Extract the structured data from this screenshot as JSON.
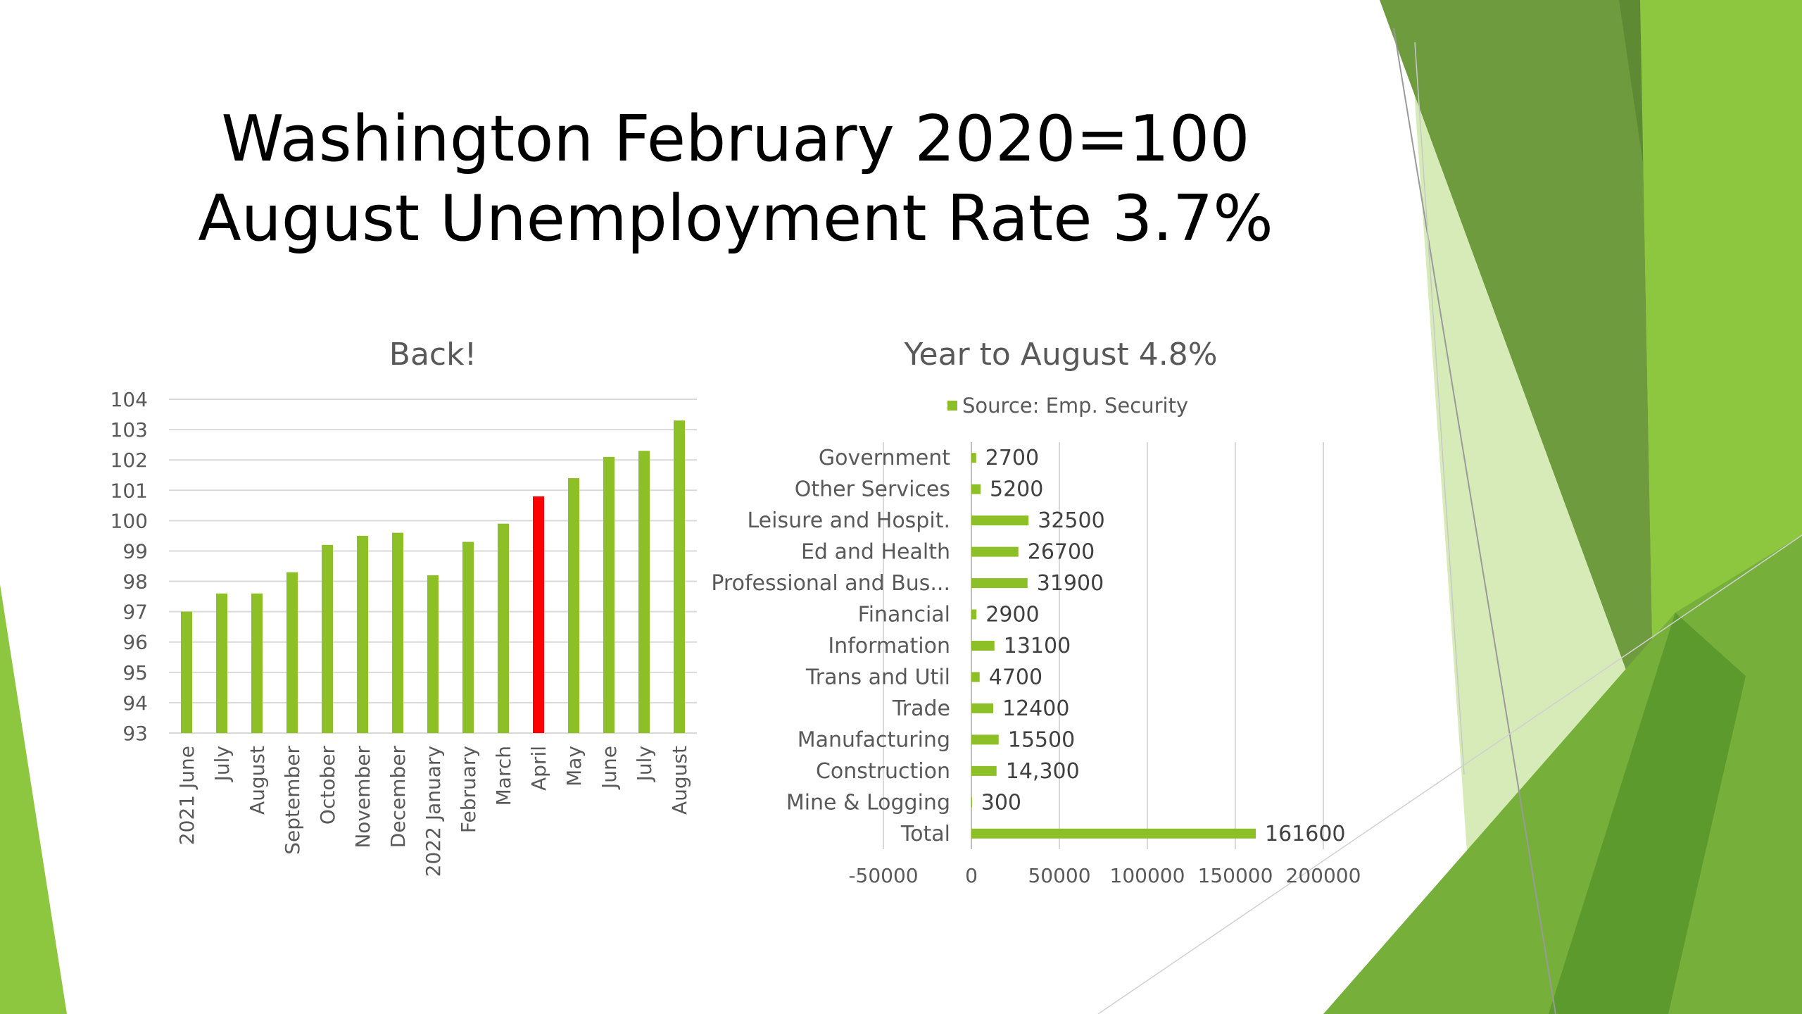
{
  "slide": {
    "title_line1": "Washington February 2020=100",
    "title_line2": "August Unemployment Rate 3.7%"
  },
  "colors": {
    "bar_green": "#8DC026",
    "highlight_red": "#FF0000",
    "deco_dark_green": "#6E9B3D",
    "deco_green": "#8DC63F",
    "deco_light_green": "#C9E3A1",
    "grid": "#D9D9D9",
    "text_gray": "#595959"
  },
  "chart_data": [
    {
      "type": "bar",
      "title": "Back!",
      "categories": [
        "2021 June",
        "July",
        "August",
        "September",
        "October",
        "November",
        "December",
        "2022 January",
        "February",
        "March",
        "April",
        "May",
        "June",
        "July",
        "August"
      ],
      "values": [
        97.0,
        97.6,
        97.6,
        98.3,
        99.2,
        99.5,
        99.6,
        98.2,
        99.3,
        99.9,
        100.8,
        101.4,
        102.1,
        102.3,
        103.3
      ],
      "highlight_index": 10,
      "ylim": [
        93,
        104
      ],
      "yticks": [
        "93",
        "94",
        "95",
        "96",
        "97",
        "98",
        "99",
        "100",
        "101",
        "102",
        "103",
        "104"
      ],
      "grid": true,
      "xlabel": "",
      "ylabel": ""
    },
    {
      "type": "bar",
      "orientation": "horizontal",
      "title": "Year to August 4.8%",
      "legend": "Source: Emp. Security",
      "legend_position": "top",
      "categories": [
        "Government",
        "Other Services",
        "Leisure and Hospit.",
        "Ed and Health",
        "Professional and Bus...",
        "Financial",
        "Information",
        "Trans and Util",
        "Trade",
        "Manufacturing",
        "Construction",
        "Mine & Logging",
        "Total"
      ],
      "values": [
        2700,
        5200,
        32500,
        26700,
        31900,
        2900,
        13100,
        4700,
        12400,
        15500,
        14300,
        300,
        161600
      ],
      "data_labels": [
        "2700",
        "5200",
        "32500",
        "26700",
        "31900",
        "2900",
        "13100",
        "4700",
        "12400",
        "15500",
        "14,300",
        "300",
        "161600"
      ],
      "xlim": [
        -50000,
        200000
      ],
      "xticks": [
        "-50000",
        "0",
        "50000",
        "100000",
        "150000",
        "200000"
      ],
      "grid": true,
      "xlabel": "",
      "ylabel": ""
    }
  ]
}
